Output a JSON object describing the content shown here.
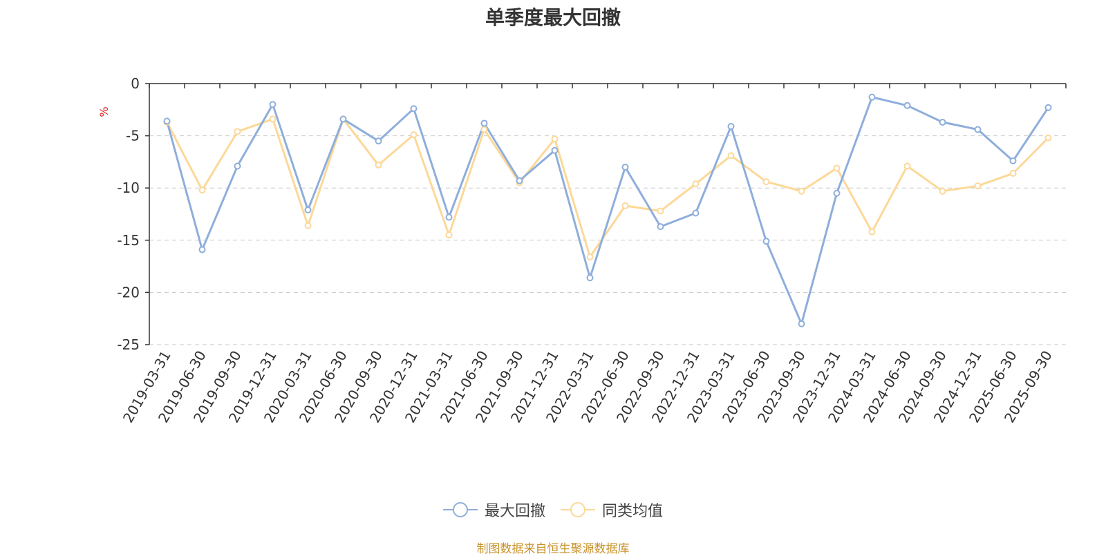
{
  "title": "单季度最大回撤",
  "source_note": "制图数据来自恒生聚源数据库",
  "chart_data": {
    "type": "line",
    "title": "单季度最大回撤",
    "ylabel": "%",
    "xlabel": "",
    "ylim": [
      -25,
      0
    ],
    "yticks": [
      0,
      -5,
      -10,
      -15,
      -20,
      -25
    ],
    "grid": true,
    "legend_position": "bottom-center",
    "categories": [
      "2019-03-31",
      "2019-06-30",
      "2019-09-30",
      "2019-12-31",
      "2020-03-31",
      "2020-06-30",
      "2020-09-30",
      "2020-12-31",
      "2021-03-31",
      "2021-06-30",
      "2021-09-30",
      "2021-12-31",
      "2022-03-31",
      "2022-06-30",
      "2022-09-30",
      "2022-12-31",
      "2023-03-31",
      "2023-06-30",
      "2023-09-30",
      "2023-12-31",
      "2024-03-31",
      "2024-06-30",
      "2024-09-30",
      "2024-12-31",
      "2025-06-30",
      "2025-09-30"
    ],
    "series": [
      {
        "name": "最大回撤",
        "color": "#8eaedb",
        "values": [
          -3.6,
          -15.9,
          -7.9,
          -2.0,
          -12.1,
          -3.4,
          -5.5,
          -2.4,
          -12.8,
          -3.8,
          -9.3,
          -6.4,
          -18.6,
          -8.0,
          -13.7,
          -12.4,
          -4.1,
          -15.1,
          -23.0,
          -10.5,
          -1.3,
          -2.1,
          -3.7,
          -4.4,
          -7.4,
          -2.3
        ]
      },
      {
        "name": "同类均值",
        "color": "#fcd898",
        "values": [
          -3.7,
          -10.2,
          -4.6,
          -3.4,
          -13.6,
          -3.4,
          -7.8,
          -4.9,
          -14.5,
          -4.4,
          -9.5,
          -5.3,
          -16.6,
          -11.7,
          -12.2,
          -9.6,
          -6.9,
          -9.4,
          -10.3,
          -8.1,
          -14.2,
          -7.9,
          -10.3,
          -9.8,
          -8.6,
          -5.2
        ]
      }
    ]
  }
}
